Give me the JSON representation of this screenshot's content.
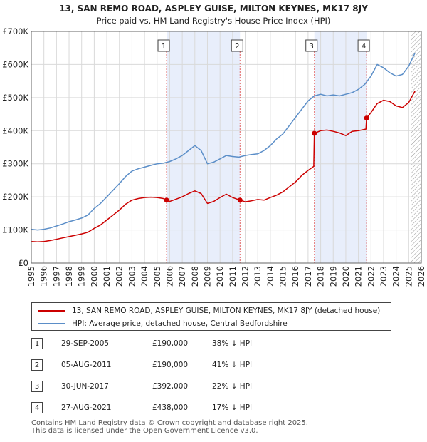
{
  "chart_data": {
    "type": "line",
    "title": "13, SAN REMO ROAD, ASPLEY GUISE, MILTON KEYNES, MK17 8JY",
    "subtitle": "Price paid vs. HM Land Registry's House Price Index (HPI)",
    "xlabel": "",
    "ylabel": "",
    "xlim": [
      1995,
      2026
    ],
    "ylim": [
      0,
      700000
    ],
    "x_ticks": [
      1995,
      1996,
      1997,
      1998,
      1999,
      2000,
      2001,
      2002,
      2003,
      2004,
      2005,
      2006,
      2007,
      2008,
      2009,
      2010,
      2011,
      2012,
      2013,
      2014,
      2015,
      2016,
      2017,
      2018,
      2019,
      2020,
      2021,
      2022,
      2023,
      2024,
      2025,
      2026
    ],
    "y_ticks": [
      {
        "value": 0,
        "label": "£0"
      },
      {
        "value": 100000,
        "label": "£100K"
      },
      {
        "value": 200000,
        "label": "£200K"
      },
      {
        "value": 300000,
        "label": "£300K"
      },
      {
        "value": 400000,
        "label": "£400K"
      },
      {
        "value": 500000,
        "label": "£500K"
      },
      {
        "value": 600000,
        "label": "£600K"
      },
      {
        "value": 700000,
        "label": "£700K"
      }
    ],
    "grid": true,
    "shaded_periods": [
      [
        2005.75,
        2011.59
      ],
      [
        2017.5,
        2021.65
      ]
    ],
    "hatched_after": 2025.2,
    "series": [
      {
        "name": "13, SAN REMO ROAD, ASPLEY GUISE, MILTON KEYNES, MK17 8JY (detached house)",
        "color": "#cc0000",
        "x": [
          1995.0,
          1995.5,
          1996.0,
          1996.5,
          1997.0,
          1997.5,
          1998.0,
          1998.5,
          1999.0,
          1999.5,
          2000.0,
          2000.5,
          2001.0,
          2001.5,
          2002.0,
          2002.5,
          2003.0,
          2003.5,
          2004.0,
          2004.5,
          2005.0,
          2005.5,
          2005.75,
          2006.0,
          2006.5,
          2007.0,
          2007.5,
          2008.0,
          2008.5,
          2009.0,
          2009.5,
          2010.0,
          2010.5,
          2011.0,
          2011.59,
          2012.0,
          2012.5,
          2013.0,
          2013.5,
          2014.0,
          2014.5,
          2015.0,
          2015.5,
          2016.0,
          2016.5,
          2017.0,
          2017.45,
          2017.5,
          2018.0,
          2018.5,
          2019.0,
          2019.5,
          2020.0,
          2020.5,
          2021.0,
          2021.6,
          2021.65,
          2022.0,
          2022.5,
          2023.0,
          2023.5,
          2024.0,
          2024.5,
          2025.0,
          2025.5
        ],
        "y": [
          65000,
          64000,
          65000,
          68000,
          72000,
          76000,
          80000,
          84000,
          88000,
          93000,
          105000,
          115000,
          130000,
          145000,
          160000,
          178000,
          190000,
          195000,
          198000,
          199000,
          198000,
          195000,
          190000,
          186000,
          193000,
          200000,
          210000,
          218000,
          210000,
          180000,
          186000,
          198000,
          208000,
          198000,
          190000,
          185000,
          188000,
          192000,
          190000,
          198000,
          205000,
          215000,
          230000,
          245000,
          265000,
          280000,
          292000,
          392000,
          400000,
          402000,
          398000,
          393000,
          385000,
          398000,
          400000,
          405000,
          438000,
          455000,
          482000,
          492000,
          488000,
          475000,
          470000,
          485000,
          520000
        ]
      },
      {
        "name": "HPI: Average price, detached house, Central Bedfordshire",
        "color": "#5b8ec8",
        "x": [
          1995.0,
          1995.5,
          1996.0,
          1996.5,
          1997.0,
          1997.5,
          1998.0,
          1998.5,
          1999.0,
          1999.5,
          2000.0,
          2000.5,
          2001.0,
          2001.5,
          2002.0,
          2002.5,
          2003.0,
          2003.5,
          2004.0,
          2004.5,
          2005.0,
          2005.5,
          2006.0,
          2006.5,
          2007.0,
          2007.5,
          2008.0,
          2008.5,
          2009.0,
          2009.5,
          2010.0,
          2010.5,
          2011.0,
          2011.5,
          2012.0,
          2012.5,
          2013.0,
          2013.5,
          2014.0,
          2014.5,
          2015.0,
          2015.5,
          2016.0,
          2016.5,
          2017.0,
          2017.5,
          2018.0,
          2018.5,
          2019.0,
          2019.5,
          2020.0,
          2020.5,
          2021.0,
          2021.5,
          2022.0,
          2022.5,
          2023.0,
          2023.5,
          2024.0,
          2024.5,
          2025.0,
          2025.5
        ],
        "y": [
          102000,
          100000,
          102000,
          106000,
          112000,
          118000,
          125000,
          130000,
          136000,
          145000,
          165000,
          180000,
          200000,
          220000,
          240000,
          262000,
          278000,
          285000,
          290000,
          295000,
          300000,
          302000,
          307000,
          315000,
          325000,
          340000,
          355000,
          340000,
          300000,
          305000,
          315000,
          325000,
          322000,
          320000,
          325000,
          328000,
          330000,
          340000,
          355000,
          375000,
          390000,
          415000,
          440000,
          465000,
          490000,
          505000,
          510000,
          505000,
          508000,
          505000,
          510000,
          515000,
          525000,
          540000,
          565000,
          600000,
          590000,
          575000,
          565000,
          570000,
          595000,
          635000
        ]
      }
    ],
    "transactions": [
      {
        "num": "1",
        "x": 2005.75,
        "y": 190000,
        "date": "29-SEP-2005",
        "price": "£190,000",
        "hpi": "38% ↓ HPI"
      },
      {
        "num": "2",
        "x": 2011.59,
        "y": 190000,
        "date": "05-AUG-2011",
        "price": "£190,000",
        "hpi": "41% ↓ HPI"
      },
      {
        "num": "3",
        "x": 2017.5,
        "y": 392000,
        "date": "30-JUN-2017",
        "price": "£392,000",
        "hpi": "22% ↓ HPI"
      },
      {
        "num": "4",
        "x": 2021.65,
        "y": 438000,
        "date": "27-AUG-2021",
        "price": "£438,000",
        "hpi": "17% ↓ HPI"
      }
    ]
  },
  "legend": {
    "property_label": "13, SAN REMO ROAD, ASPLEY GUISE, MILTON KEYNES, MK17 8JY (detached house)",
    "hpi_label": "HPI: Average price, detached house, Central Bedfordshire"
  },
  "footer": {
    "line1": "Contains HM Land Registry data © Crown copyright and database right 2025.",
    "line2": "This data is licensed under the Open Government Licence v3.0."
  }
}
